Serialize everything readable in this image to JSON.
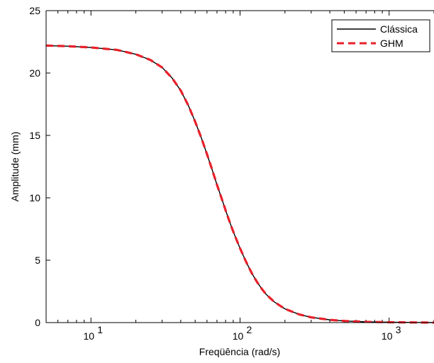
{
  "chart_data": {
    "type": "line",
    "xlabel": "Freqüência (rad/s)",
    "ylabel": "Amplitude (mm)",
    "xscale": "log",
    "xlim": [
      5,
      2000
    ],
    "ylim": [
      0,
      25
    ],
    "yticks": [
      0,
      5,
      10,
      15,
      20,
      25
    ],
    "xticks": [
      {
        "value": 10,
        "base": "10",
        "exp": "1"
      },
      {
        "value": 100,
        "base": "10",
        "exp": "2"
      },
      {
        "value": 1000,
        "base": "10",
        "exp": "3"
      }
    ],
    "grid": false,
    "legend_position": "top-right",
    "series": [
      {
        "name": "Clássica",
        "color": "#000000",
        "style": "solid",
        "x": [
          5,
          7,
          10,
          15,
          20,
          25,
          30,
          35,
          40,
          45,
          50,
          55,
          60,
          65,
          70,
          75,
          80,
          85,
          90,
          95,
          100,
          110,
          120,
          130,
          140,
          150,
          170,
          200,
          250,
          300,
          400,
          500,
          700,
          1000,
          1500,
          2000
        ],
        "values": [
          22.2,
          22.15,
          22.05,
          21.85,
          21.5,
          21.05,
          20.45,
          19.6,
          18.6,
          17.4,
          16.1,
          14.8,
          13.5,
          12.25,
          11.05,
          10.0,
          9.0,
          8.1,
          7.3,
          6.6,
          5.95,
          4.85,
          3.95,
          3.25,
          2.7,
          2.25,
          1.65,
          1.1,
          0.65,
          0.42,
          0.22,
          0.13,
          0.06,
          0.03,
          0.01,
          0.0
        ]
      },
      {
        "name": "GHM",
        "color": "#e8202a",
        "style": "dashed",
        "x": [
          5,
          7,
          10,
          15,
          20,
          25,
          30,
          35,
          40,
          45,
          50,
          55,
          60,
          65,
          70,
          75,
          80,
          85,
          90,
          95,
          100,
          110,
          120,
          130,
          140,
          150,
          170,
          200,
          250,
          300,
          400,
          500,
          700,
          1000,
          1500,
          2000
        ],
        "values": [
          22.2,
          22.15,
          22.05,
          21.85,
          21.5,
          21.05,
          20.45,
          19.6,
          18.6,
          17.4,
          16.1,
          14.8,
          13.5,
          12.25,
          11.05,
          10.0,
          9.0,
          8.1,
          7.3,
          6.6,
          5.95,
          4.85,
          3.95,
          3.25,
          2.7,
          2.25,
          1.65,
          1.1,
          0.65,
          0.42,
          0.22,
          0.13,
          0.06,
          0.03,
          0.01,
          0.0
        ]
      }
    ]
  }
}
